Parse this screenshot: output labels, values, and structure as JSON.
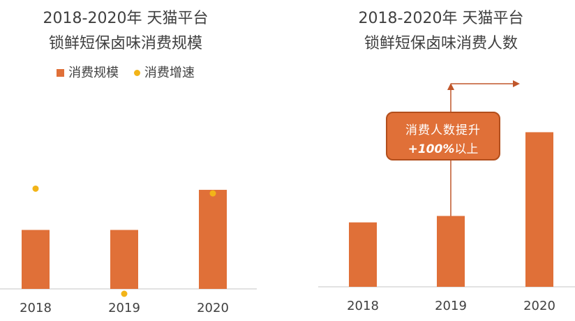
{
  "chart_data": [
    {
      "type": "bar",
      "title": "2018-2020年 天猫平台",
      "subtitle": "锁鲜短保卤味消费规模",
      "categories": [
        "2018",
        "2019",
        "2020"
      ],
      "series": [
        {
          "name": "消费规模",
          "type": "bar",
          "values": [
            100,
            100,
            168
          ],
          "color": "#E07038"
        },
        {
          "name": "消费增速",
          "type": "scatter",
          "values": [
            170,
            0,
            162
          ],
          "color": "#F2B418"
        }
      ],
      "ylim": [
        0,
        200
      ],
      "grid": false,
      "legend": "top-center",
      "baseline_color": "#D9D9D9"
    },
    {
      "type": "bar",
      "title": "2018-2020年 天猫平台",
      "subtitle": "锁鲜短保卤味消费人数",
      "categories": [
        "2018",
        "2019",
        "2020"
      ],
      "series": [
        {
          "type": "bar",
          "values": [
            100,
            110,
            240
          ],
          "color": "#E07038"
        }
      ],
      "ylim": [
        0,
        260
      ],
      "grid": false,
      "annotation": {
        "line1": "消费人数提升",
        "value": "+100%",
        "suffix": "以上"
      },
      "baseline_color": "#D9D9D9"
    }
  ]
}
